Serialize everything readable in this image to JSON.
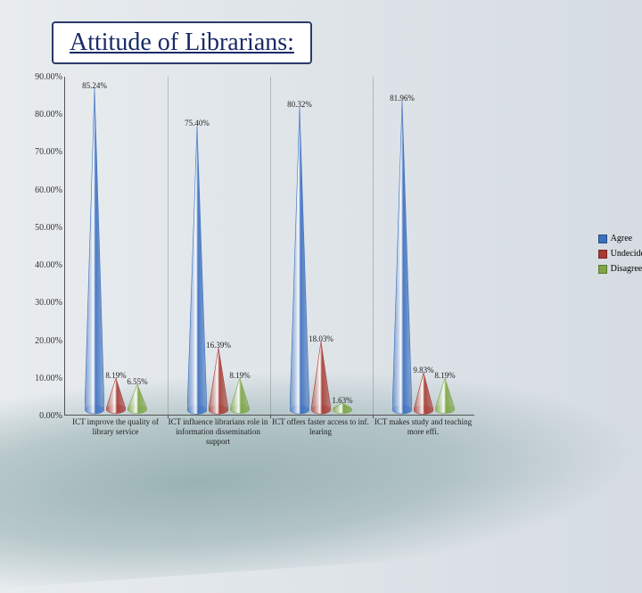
{
  "title": "Attitude of Librarians:",
  "title_fontsize": 28,
  "title_color": "#1a2a66",
  "chart": {
    "type": "bar",
    "ylim": [
      0,
      90
    ],
    "ytick_step": 10,
    "ytick_format_suffix": ".00%",
    "background": "transparent",
    "grid_color": "rgba(100,100,100,0.35)",
    "label_fontsize": 9,
    "colors": {
      "agree": "#3b6fbf",
      "undecided": "#a83a32",
      "disagree": "#7ea646"
    },
    "series": [
      {
        "key": "agree",
        "label": "Agree"
      },
      {
        "key": "undecided",
        "label": "Undecided"
      },
      {
        "key": "disagree",
        "label": "Disagree"
      }
    ],
    "categories": [
      {
        "label": "ICT improve the quality of library service",
        "agree": 85.24,
        "agree_label": "85.24%",
        "undecided": 8.19,
        "undecided_label": "8.19%",
        "disagree": 6.55,
        "disagree_label": "6.55%"
      },
      {
        "label": "ICT influence librarians role in information dissemination support",
        "agree": 75.4,
        "agree_label": "75.40%",
        "undecided": 16.39,
        "undecided_label": "16.39%",
        "disagree": 8.19,
        "disagree_label": "8.19%"
      },
      {
        "label": "ICT offers faster access to inf. learing",
        "agree": 80.32,
        "agree_label": "80.32%",
        "undecided": 18.03,
        "undecided_label": "18.03%",
        "disagree": 1.63,
        "disagree_label": "1.63%"
      },
      {
        "label": "ICT makes study and teaching more effi.",
        "agree": 81.96,
        "agree_label": "81.96%",
        "undecided": 9.83,
        "undecided_label": "9.83%",
        "disagree": 8.19,
        "disagree_label": "8.19%"
      }
    ]
  }
}
